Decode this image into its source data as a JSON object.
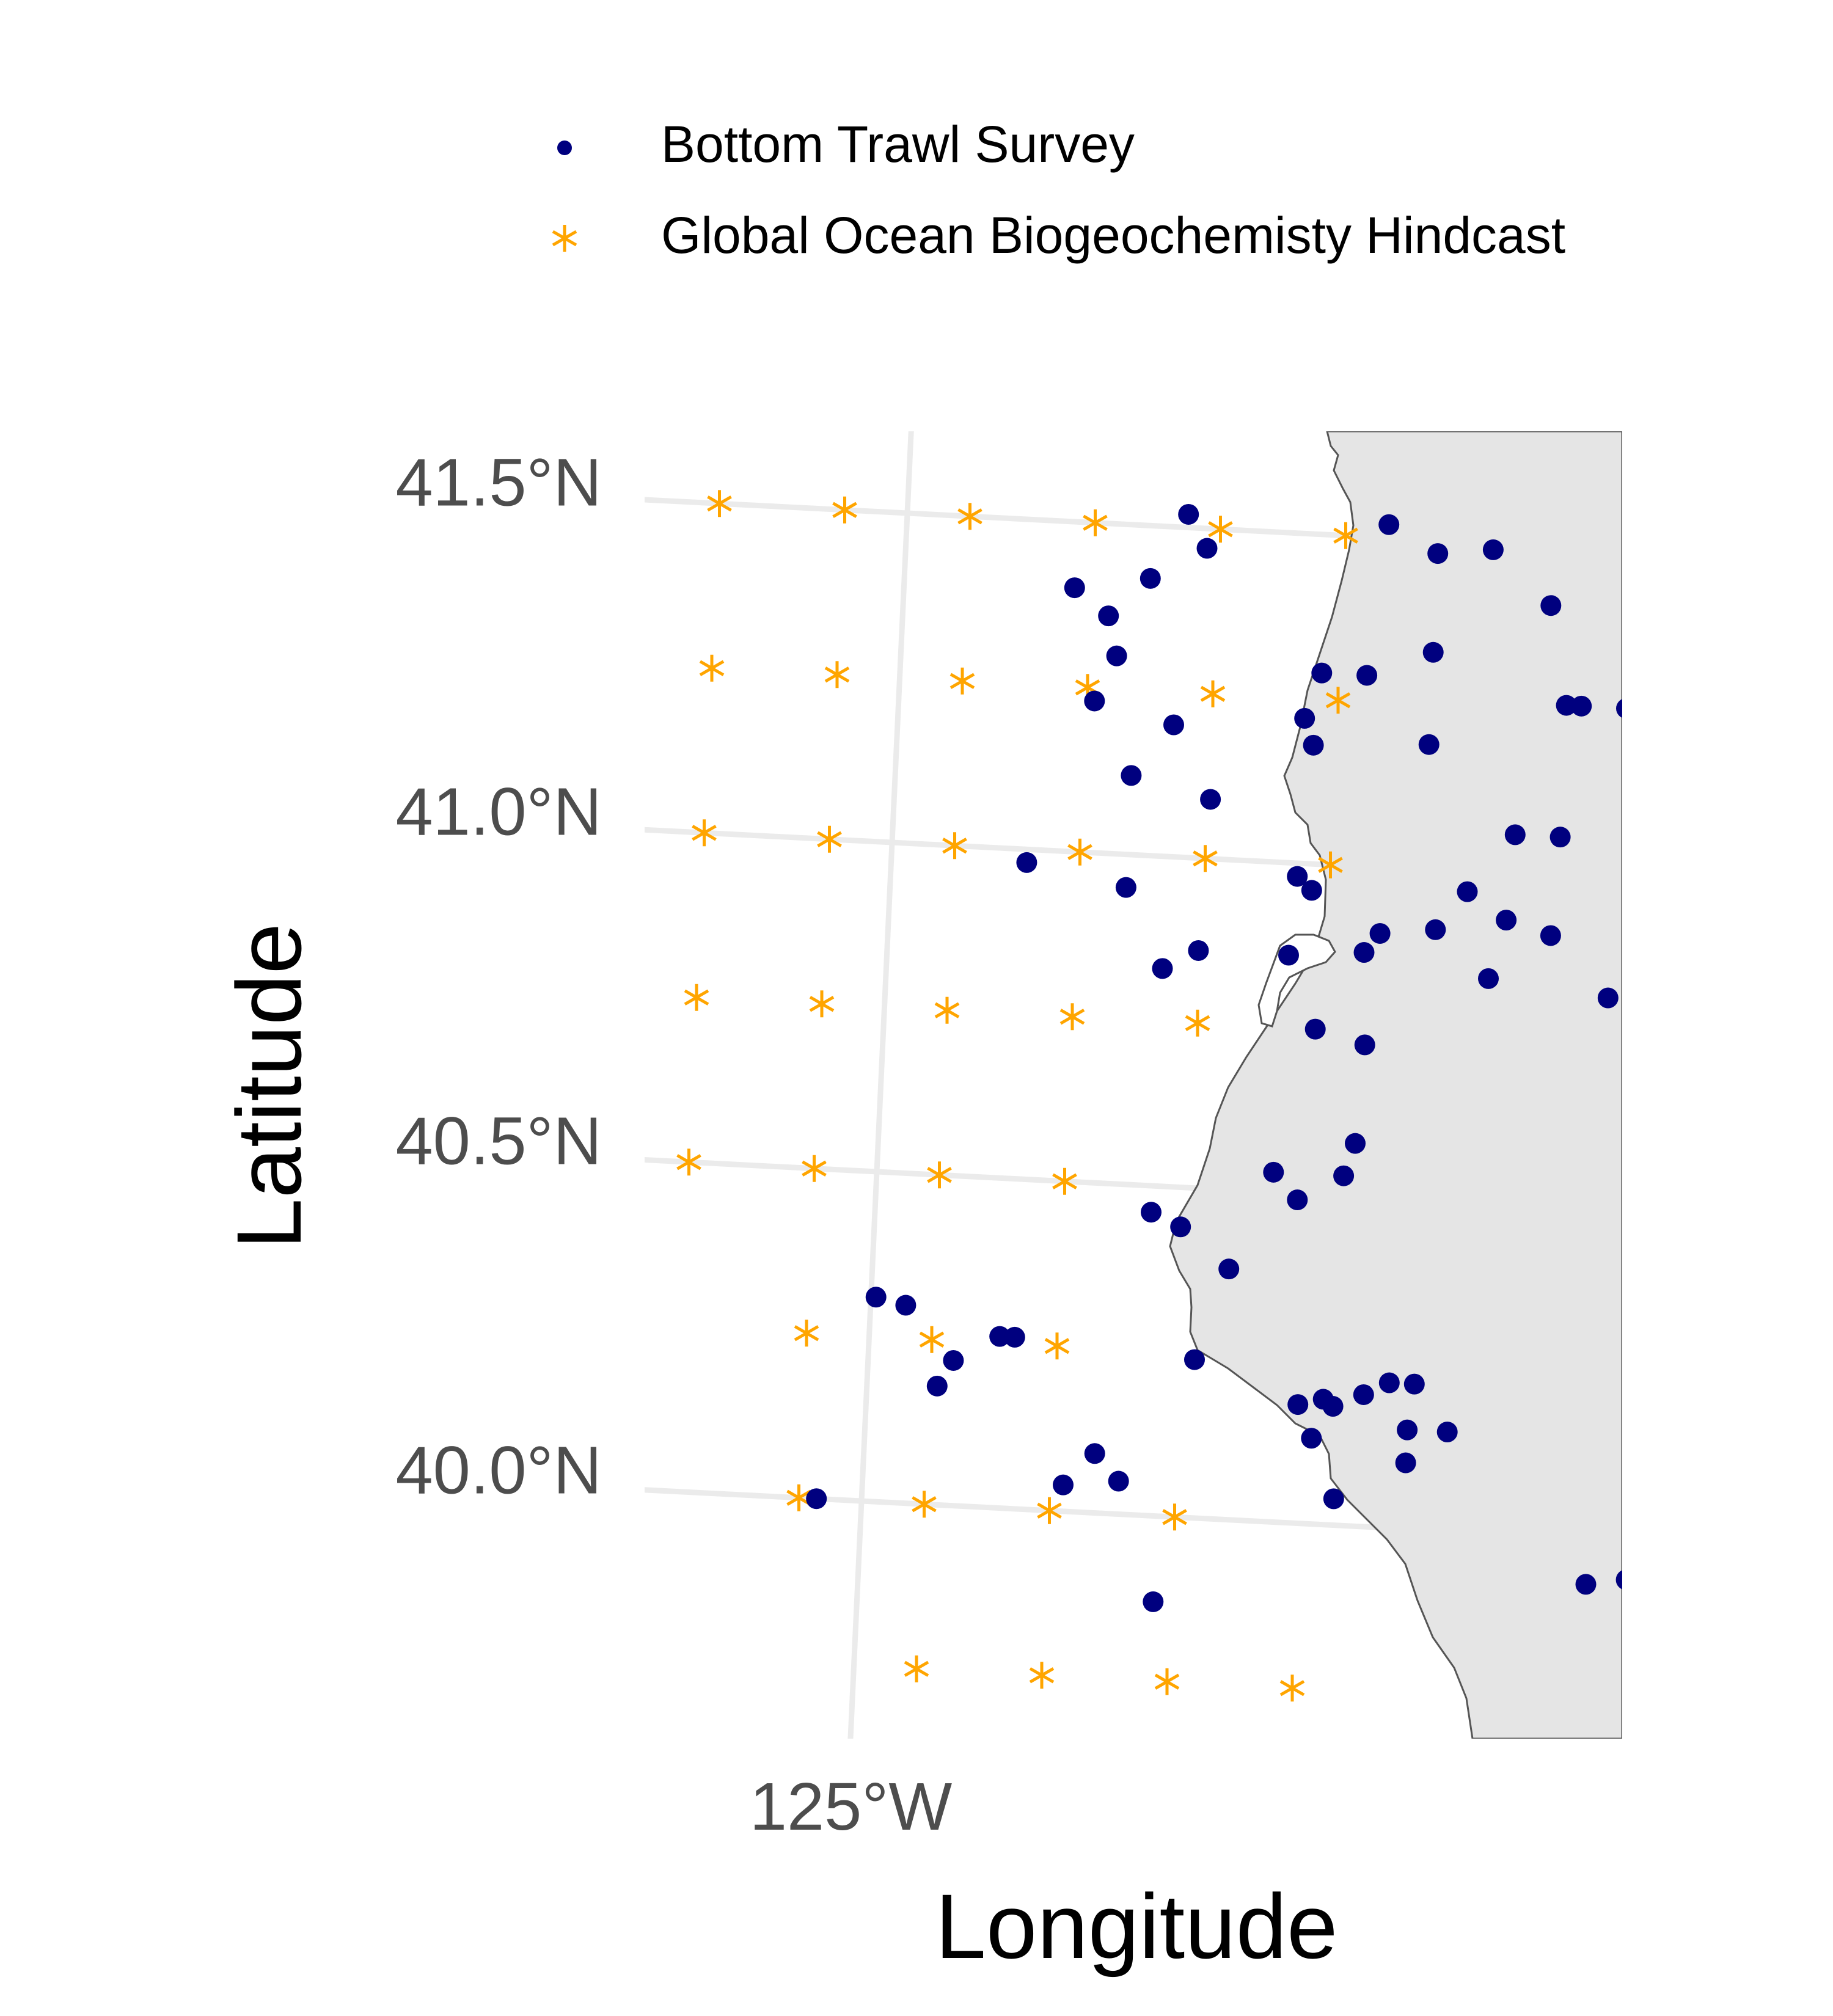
{
  "legend": {
    "survey_label": "Bottom Trawl Survey",
    "hindcast_label": "Global Ocean Biogeochemisty Hindcast",
    "survey_color": "#00007F",
    "hindcast_color": "#FFA500"
  },
  "axes": {
    "x_title": "Longitude",
    "y_title": "Latitude",
    "x_ticks": [
      {
        "lon": -125.0,
        "label": "125°W"
      }
    ],
    "y_ticks": [
      {
        "lat": 41.5,
        "label": "41.5°N"
      },
      {
        "lat": 41.0,
        "label": "41.0°N"
      },
      {
        "lat": 40.5,
        "label": "40.5°N"
      },
      {
        "lat": 40.0,
        "label": "40.0°N"
      }
    ]
  },
  "map": {
    "land_color": "#E5E5E5",
    "coast_color": "#555555",
    "grid_color": "#EBEBEB"
  },
  "chart_data": {
    "type": "scatter",
    "xlabel": "Longitude",
    "ylabel": "Latitude",
    "series": [
      {
        "name": "Bottom Trawl Survey",
        "marker": "circle",
        "points": [
          [
            -124.44,
            41.52
          ],
          [
            -124.04,
            41.52
          ],
          [
            -123.83,
            41.49
          ],
          [
            -123.94,
            41.48
          ],
          [
            -124.4,
            41.47
          ],
          [
            -124.51,
            41.42
          ],
          [
            -124.66,
            41.4
          ],
          [
            -123.71,
            41.41
          ],
          [
            -124.59,
            41.36
          ],
          [
            -123.54,
            41.36
          ],
          [
            -123.94,
            41.33
          ],
          [
            -124.57,
            41.3
          ],
          [
            -124.16,
            41.29
          ],
          [
            -124.07,
            41.29
          ],
          [
            -123.67,
            41.26
          ],
          [
            -123.64,
            41.26
          ],
          [
            -123.55,
            41.26
          ],
          [
            -124.61,
            41.23
          ],
          [
            -124.19,
            41.22
          ],
          [
            -124.45,
            41.2
          ],
          [
            -123.94,
            41.19
          ],
          [
            -124.17,
            41.18
          ],
          [
            -124.53,
            41.12
          ],
          [
            -124.37,
            41.09
          ],
          [
            -123.76,
            41.06
          ],
          [
            -123.67,
            41.06
          ],
          [
            -124.73,
            40.98
          ],
          [
            -124.19,
            40.98
          ],
          [
            -123.85,
            40.97
          ],
          [
            -124.53,
            40.95
          ],
          [
            -124.16,
            40.96
          ],
          [
            -123.77,
            40.93
          ],
          [
            -124.02,
            40.9
          ],
          [
            -123.91,
            40.91
          ],
          [
            -123.68,
            40.91
          ],
          [
            -124.05,
            40.87
          ],
          [
            -124.38,
            40.86
          ],
          [
            -124.2,
            40.86
          ],
          [
            -123.8,
            40.84
          ],
          [
            -124.45,
            40.83
          ],
          [
            -123.56,
            40.82
          ],
          [
            -124.14,
            40.75
          ],
          [
            -124.04,
            40.73
          ],
          [
            -124.05,
            40.58
          ],
          [
            -124.21,
            40.53
          ],
          [
            -124.07,
            40.53
          ],
          [
            -124.16,
            40.49
          ],
          [
            -124.45,
            40.46
          ],
          [
            -124.39,
            40.44
          ],
          [
            -124.29,
            40.38
          ],
          [
            -124.99,
            40.31
          ],
          [
            -124.93,
            40.3
          ],
          [
            -124.74,
            40.26
          ],
          [
            -124.71,
            40.26
          ],
          [
            -124.35,
            40.24
          ],
          [
            -124.83,
            40.22
          ],
          [
            -123.91,
            40.22
          ],
          [
            -123.96,
            40.22
          ],
          [
            -124.01,
            40.2
          ],
          [
            -124.09,
            40.19
          ],
          [
            -124.14,
            40.18
          ],
          [
            -124.07,
            40.18
          ],
          [
            -124.86,
            40.18
          ],
          [
            -123.92,
            40.15
          ],
          [
            -123.84,
            40.15
          ],
          [
            -124.11,
            40.13
          ],
          [
            -123.92,
            40.1
          ],
          [
            -124.54,
            40.09
          ],
          [
            -124.49,
            40.05
          ],
          [
            -124.6,
            40.04
          ],
          [
            -124.06,
            40.04
          ],
          [
            -125.09,
            40.0
          ],
          [
            -123.55,
            39.93
          ],
          [
            -123.47,
            39.94
          ],
          [
            -123.29,
            39.91
          ],
          [
            -124.41,
            39.87
          ]
        ]
      },
      {
        "name": "Global Ocean Biogeochemisty Hindcast",
        "marker": "asterisk",
        "points": [
          [
            -125.375,
            41.5
          ],
          [
            -125.125,
            41.5
          ],
          [
            -124.875,
            41.5
          ],
          [
            -124.625,
            41.5
          ],
          [
            -124.375,
            41.5
          ],
          [
            -124.125,
            41.5
          ],
          [
            -125.375,
            41.25
          ],
          [
            -125.125,
            41.25
          ],
          [
            -124.875,
            41.25
          ],
          [
            -124.625,
            41.25
          ],
          [
            -124.375,
            41.25
          ],
          [
            -124.125,
            41.25
          ],
          [
            -125.375,
            41.0
          ],
          [
            -125.125,
            41.0
          ],
          [
            -124.875,
            41.0
          ],
          [
            -124.625,
            41.0
          ],
          [
            -124.375,
            41.0
          ],
          [
            -124.125,
            41.0
          ],
          [
            -125.375,
            40.75
          ],
          [
            -125.125,
            40.75
          ],
          [
            -124.875,
            40.75
          ],
          [
            -124.625,
            40.75
          ],
          [
            -124.375,
            40.75
          ],
          [
            -125.375,
            40.5
          ],
          [
            -125.125,
            40.5
          ],
          [
            -124.875,
            40.5
          ],
          [
            -124.625,
            40.5
          ],
          [
            -125.125,
            40.25
          ],
          [
            -124.875,
            40.25
          ],
          [
            -124.625,
            40.25
          ],
          [
            -125.125,
            40.0
          ],
          [
            -124.875,
            40.0
          ],
          [
            -124.625,
            40.0
          ],
          [
            -124.375,
            40.0
          ],
          [
            -124.875,
            39.75
          ],
          [
            -124.625,
            39.75
          ],
          [
            -124.375,
            39.75
          ],
          [
            -124.125,
            39.75
          ]
        ]
      }
    ]
  }
}
